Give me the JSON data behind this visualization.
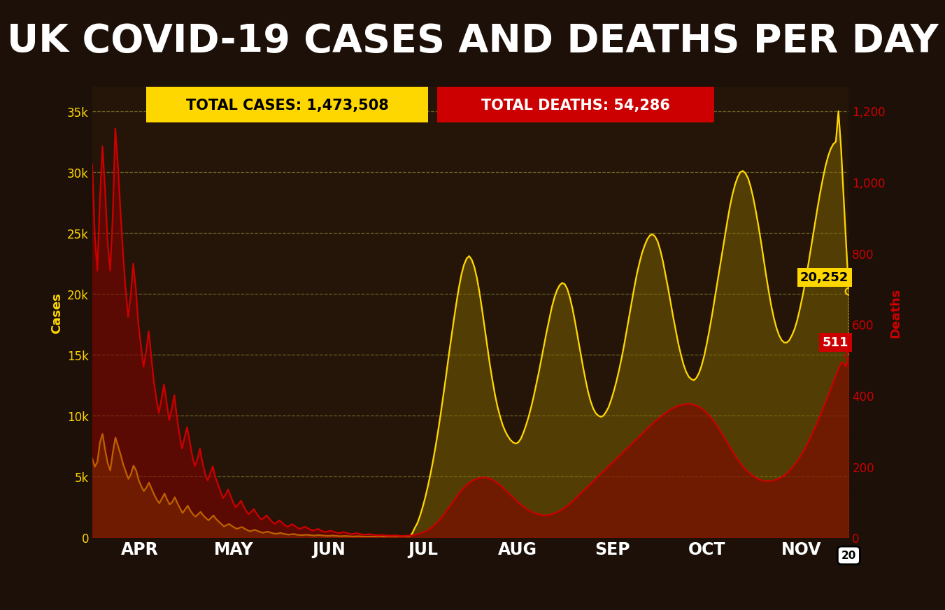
{
  "title": "UK COVID-19 CASES AND DEATHS PER DAY",
  "title_color": "#FFFFFF",
  "background_color": "#1c1008",
  "chart_bg": "#251508",
  "cases_color": "#FFD700",
  "deaths_color": "#CC0000",
  "cases_fill_color": "#8B7000",
  "deaths_fill_color": "#880000",
  "cases_label": "Cases",
  "deaths_label": "Deaths",
  "total_cases_text": "TOTAL CASES: 1,473,508",
  "total_deaths_text": "TOTAL DEATHS: 54,286",
  "total_cases_bg": "#FFD700",
  "total_deaths_bg": "#CC0000",
  "last_cases_value": "20,252",
  "last_deaths_value": "511",
  "last_date_label": "20",
  "cases_ylim": [
    0,
    37000
  ],
  "deaths_ylim": [
    0,
    1267
  ],
  "cases_yticks": [
    0,
    5000,
    10000,
    15000,
    20000,
    25000,
    30000,
    35000
  ],
  "deaths_yticks": [
    0,
    200,
    400,
    600,
    800,
    1000,
    1200
  ],
  "month_labels": [
    "APR",
    "MAY",
    "JUN",
    "JUL",
    "AUG",
    "SEP",
    "OCT",
    "NOV"
  ],
  "grid_color": "#888833",
  "cases_data": [
    6500,
    5800,
    6200,
    7800,
    8500,
    7200,
    6100,
    5500,
    7000,
    8200,
    7500,
    6800,
    6000,
    5400,
    4800,
    5200,
    5900,
    5500,
    4700,
    4200,
    3800,
    4100,
    4500,
    4000,
    3500,
    3100,
    2800,
    3200,
    3600,
    3100,
    2700,
    2900,
    3300,
    2800,
    2400,
    2000,
    2300,
    2600,
    2200,
    1900,
    1700,
    1900,
    2100,
    1800,
    1600,
    1400,
    1600,
    1800,
    1500,
    1300,
    1100,
    900,
    1000,
    1100,
    950,
    820,
    700,
    780,
    850,
    720,
    600,
    500,
    560,
    620,
    530,
    450,
    380,
    420,
    470,
    400,
    340,
    290,
    320,
    360,
    300,
    260,
    220,
    250,
    280,
    230,
    200,
    180,
    200,
    220,
    190,
    170,
    150,
    170,
    190,
    160,
    140,
    120,
    130,
    150,
    130,
    110,
    95,
    105,
    115,
    100,
    85,
    75,
    85,
    95,
    82,
    70,
    62,
    70,
    78,
    68,
    58,
    50,
    56,
    63,
    54,
    46,
    40,
    45,
    50,
    43,
    37,
    33,
    37,
    42,
    360,
    800,
    1200,
    1800,
    2500,
    3300,
    4200,
    5200,
    6300,
    7500,
    8800,
    10200,
    11700,
    13200,
    14800,
    16300,
    17800,
    19200,
    20500,
    21600,
    22400,
    22900,
    23100,
    22800,
    22200,
    21300,
    20100,
    18700,
    17200,
    15700,
    14200,
    12900,
    11700,
    10700,
    9900,
    9200,
    8700,
    8300,
    8000,
    7800,
    7700,
    7800,
    8100,
    8600,
    9200,
    9900,
    10700,
    11600,
    12600,
    13600,
    14700,
    15800,
    16900,
    17900,
    18900,
    19700,
    20300,
    20700,
    20900,
    20800,
    20400,
    19700,
    18800,
    17700,
    16500,
    15300,
    14100,
    13000,
    12000,
    11200,
    10600,
    10200,
    10000,
    9900,
    10000,
    10300,
    10700,
    11300,
    12000,
    12800,
    13700,
    14700,
    15800,
    17000,
    18200,
    19400,
    20600,
    21700,
    22600,
    23400,
    24000,
    24500,
    24800,
    24900,
    24700,
    24300,
    23600,
    22700,
    21600,
    20500,
    19300,
    18100,
    17000,
    15900,
    15000,
    14200,
    13600,
    13200,
    13000,
    12900,
    13100,
    13500,
    14100,
    14900,
    15900,
    17000,
    18200,
    19500,
    20800,
    22100,
    23400,
    24700,
    26000,
    27200,
    28200,
    29000,
    29600,
    30000,
    30100,
    29900,
    29500,
    28800,
    27900,
    26800,
    25600,
    24300,
    22900,
    21500,
    20200,
    19000,
    18000,
    17200,
    16600,
    16200,
    16000,
    16000,
    16200,
    16600,
    17100,
    17800,
    18700,
    19700,
    20800,
    22000,
    23300,
    24600,
    25900,
    27200,
    28400,
    29500,
    30500,
    31300,
    31900,
    32300,
    32500,
    35000,
    32000,
    28000,
    24000,
    20252
  ],
  "deaths_data": [
    1050,
    850,
    750,
    950,
    1100,
    980,
    830,
    750,
    900,
    1150,
    1050,
    920,
    800,
    700,
    620,
    680,
    770,
    700,
    600,
    540,
    480,
    520,
    580,
    510,
    440,
    390,
    350,
    390,
    430,
    380,
    330,
    360,
    400,
    340,
    290,
    250,
    280,
    310,
    270,
    230,
    200,
    220,
    250,
    210,
    180,
    160,
    180,
    200,
    170,
    150,
    130,
    110,
    120,
    135,
    115,
    98,
    84,
    93,
    103,
    88,
    75,
    65,
    72,
    80,
    68,
    58,
    50,
    55,
    62,
    53,
    45,
    38,
    42,
    48,
    41,
    35,
    30,
    33,
    37,
    32,
    27,
    24,
    27,
    30,
    26,
    22,
    19,
    21,
    24,
    20,
    17,
    15,
    17,
    19,
    16,
    14,
    12,
    13,
    15,
    13,
    11,
    9,
    10,
    12,
    10,
    9,
    7,
    8,
    9,
    8,
    7,
    6,
    6,
    7,
    6,
    5,
    5,
    5,
    6,
    5,
    4,
    4,
    4,
    5,
    5,
    6,
    7,
    9,
    11,
    14,
    17,
    21,
    26,
    32,
    38,
    46,
    54,
    63,
    73,
    83,
    93,
    103,
    113,
    123,
    132,
    140,
    147,
    153,
    158,
    162,
    165,
    167,
    168,
    168,
    167,
    165,
    162,
    158,
    153,
    147,
    141,
    134,
    127,
    120,
    113,
    106,
    99,
    93,
    87,
    82,
    77,
    73,
    70,
    67,
    65,
    63,
    62,
    62,
    63,
    65,
    67,
    70,
    73,
    77,
    82,
    87,
    93,
    99,
    106,
    113,
    120,
    127,
    134,
    141,
    148,
    155,
    162,
    169,
    176,
    183,
    190,
    197,
    204,
    211,
    218,
    225,
    232,
    239,
    246,
    253,
    260,
    267,
    274,
    281,
    288,
    295,
    302,
    309,
    316,
    323,
    329,
    335,
    341,
    347,
    352,
    357,
    361,
    365,
    368,
    371,
    373,
    374,
    375,
    375,
    374,
    372,
    369,
    365,
    360,
    354,
    347,
    339,
    330,
    320,
    309,
    298,
    286,
    274,
    262,
    250,
    238,
    227,
    216,
    206,
    197,
    189,
    182,
    176,
    171,
    167,
    163,
    161,
    159,
    158,
    158,
    159,
    161,
    163,
    166,
    170,
    175,
    181,
    188,
    196,
    205,
    215,
    226,
    238,
    251,
    265,
    280,
    295,
    311,
    328,
    345,
    363,
    381,
    399,
    418,
    437,
    455,
    473,
    491,
    490,
    480,
    511
  ]
}
